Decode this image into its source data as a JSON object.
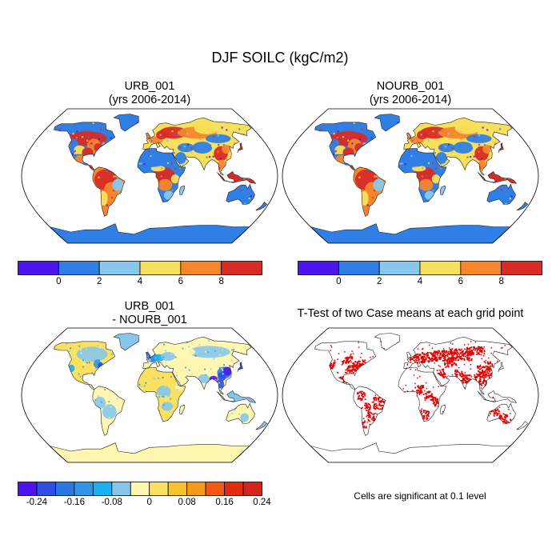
{
  "figure": {
    "title": "DJF SOILC (kgC/m2)"
  },
  "panels": {
    "urb": {
      "title_line1": "URB_001",
      "title_line2": "(yrs 2006-2014)"
    },
    "nourb": {
      "title_line1": "NOURB_001",
      "title_line2": "(yrs 2006-2014)"
    },
    "diff": {
      "title_line1": "URB_001",
      "title_line2": "- NOURB_001"
    },
    "ttest": {
      "title": "T-Test of two Case means at each grid point",
      "note": "Cells are significant at 0.1 level"
    }
  },
  "colorbars": {
    "soilc": {
      "colors": [
        "#4b16ee",
        "#2f7fe6",
        "#87c8ec",
        "#f8e05a",
        "#f7862b",
        "#d92b26"
      ],
      "tick_labels": [
        "0",
        "2",
        "4",
        "6",
        "8"
      ]
    },
    "diff": {
      "colors": [
        "#4b16ee",
        "#2e4fe6",
        "#2c75e5",
        "#2f93ea",
        "#1aaef3",
        "#86c6ec",
        "#fff7b0",
        "#fbe160",
        "#f9c22b",
        "#f79a18",
        "#f25b11",
        "#e22b0f",
        "#d6231c"
      ],
      "tick_labels": [
        "-0.24",
        "-0.16",
        "-0.08",
        "0",
        "0.08",
        "0.16",
        "0.24"
      ]
    }
  },
  "colors": {
    "ocean": "#ffffff",
    "significant": "#e00000",
    "coast": "#222222"
  }
}
